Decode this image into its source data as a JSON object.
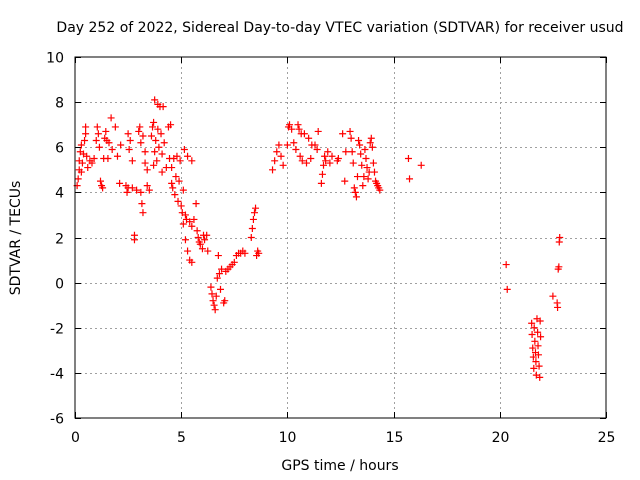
{
  "chart_data": {
    "type": "scatter",
    "title": "Day 252 of 2022, Sidereal Day-to-day VTEC variation (SDTVAR) for receiver usud",
    "xlabel": "GPS time / hours",
    "ylabel": "SDTVAR / TECUs",
    "xlim": [
      0,
      25
    ],
    "ylim": [
      -6,
      10
    ],
    "xticks": [
      0,
      5,
      10,
      15,
      20,
      25
    ],
    "yticks": [
      -6,
      -4,
      -2,
      0,
      2,
      4,
      6,
      8,
      10
    ],
    "xtick_labels": [
      "0",
      "5",
      "10",
      "15",
      "20",
      "25"
    ],
    "ytick_labels": [
      "-6",
      "-4",
      "-2",
      "0",
      "2",
      "4",
      "6",
      "8",
      "10"
    ],
    "grid": true,
    "marker": "plus",
    "marker_color": "#ff0000",
    "series": [
      {
        "name": "SDTVAR",
        "points": [
          [
            0.1,
            4.3
          ],
          [
            0.15,
            4.6
          ],
          [
            0.2,
            5.0
          ],
          [
            0.2,
            5.4
          ],
          [
            0.25,
            5.8
          ],
          [
            0.3,
            6.1
          ],
          [
            0.3,
            4.9
          ],
          [
            0.35,
            5.3
          ],
          [
            0.4,
            5.7
          ],
          [
            0.45,
            6.3
          ],
          [
            0.5,
            6.6
          ],
          [
            0.5,
            6.9
          ],
          [
            0.55,
            5.6
          ],
          [
            0.6,
            5.1
          ],
          [
            0.7,
            5.4
          ],
          [
            0.8,
            5.3
          ],
          [
            0.9,
            5.5
          ],
          [
            1.0,
            6.3
          ],
          [
            1.05,
            6.9
          ],
          [
            1.1,
            6.6
          ],
          [
            1.15,
            6.0
          ],
          [
            1.2,
            4.5
          ],
          [
            1.25,
            4.3
          ],
          [
            1.3,
            4.2
          ],
          [
            1.35,
            5.5
          ],
          [
            1.4,
            6.4
          ],
          [
            1.45,
            6.7
          ],
          [
            1.5,
            6.3
          ],
          [
            1.55,
            5.5
          ],
          [
            1.6,
            6.2
          ],
          [
            1.7,
            7.3
          ],
          [
            1.75,
            5.9
          ],
          [
            1.9,
            6.9
          ],
          [
            2.0,
            5.6
          ],
          [
            2.1,
            4.4
          ],
          [
            2.15,
            6.1
          ],
          [
            2.4,
            4.3
          ],
          [
            2.45,
            4.0
          ],
          [
            2.5,
            4.2
          ],
          [
            2.5,
            6.6
          ],
          [
            2.55,
            5.9
          ],
          [
            2.6,
            6.3
          ],
          [
            2.7,
            4.2
          ],
          [
            2.7,
            5.4
          ],
          [
            2.8,
            2.1
          ],
          [
            2.8,
            1.9
          ],
          [
            2.9,
            4.1
          ],
          [
            3.0,
            6.7
          ],
          [
            3.05,
            6.9
          ],
          [
            3.1,
            6.2
          ],
          [
            3.1,
            4.0
          ],
          [
            3.15,
            3.5
          ],
          [
            3.2,
            3.1
          ],
          [
            3.2,
            6.5
          ],
          [
            3.3,
            5.8
          ],
          [
            3.3,
            5.3
          ],
          [
            3.4,
            5.0
          ],
          [
            3.4,
            4.3
          ],
          [
            3.5,
            4.1
          ],
          [
            3.6,
            6.5
          ],
          [
            3.65,
            6.9
          ],
          [
            3.7,
            7.1
          ],
          [
            3.7,
            5.2
          ],
          [
            3.75,
            5.8
          ],
          [
            3.75,
            8.1
          ],
          [
            3.8,
            6.3
          ],
          [
            3.85,
            5.4
          ],
          [
            3.9,
            6.8
          ],
          [
            3.9,
            7.9
          ],
          [
            3.95,
            6.0
          ],
          [
            4.0,
            7.8
          ],
          [
            4.05,
            6.6
          ],
          [
            4.1,
            5.7
          ],
          [
            4.1,
            4.9
          ],
          [
            4.15,
            7.8
          ],
          [
            4.2,
            6.2
          ],
          [
            4.3,
            5.1
          ],
          [
            4.4,
            6.9
          ],
          [
            4.45,
            5.5
          ],
          [
            4.5,
            7.0
          ],
          [
            4.55,
            5.1
          ],
          [
            4.55,
            4.4
          ],
          [
            4.6,
            4.2
          ],
          [
            4.65,
            5.5
          ],
          [
            4.7,
            3.9
          ],
          [
            4.75,
            4.7
          ],
          [
            4.8,
            5.6
          ],
          [
            4.85,
            3.6
          ],
          [
            4.9,
            4.5
          ],
          [
            4.95,
            5.4
          ],
          [
            5.0,
            3.4
          ],
          [
            5.05,
            3.1
          ],
          [
            5.1,
            4.1
          ],
          [
            5.15,
            5.9
          ],
          [
            5.2,
            3.0
          ],
          [
            5.25,
            2.8
          ],
          [
            5.3,
            5.6
          ],
          [
            5.4,
            2.7
          ],
          [
            5.5,
            2.5
          ],
          [
            5.5,
            5.4
          ],
          [
            5.1,
            2.6
          ],
          [
            5.2,
            1.9
          ],
          [
            5.3,
            1.4
          ],
          [
            5.4,
            1.0
          ],
          [
            5.5,
            0.9
          ],
          [
            5.6,
            2.8
          ],
          [
            5.7,
            3.5
          ],
          [
            5.75,
            2.3
          ],
          [
            5.8,
            2.0
          ],
          [
            5.85,
            1.8
          ],
          [
            5.9,
            1.7
          ],
          [
            6.0,
            1.5
          ],
          [
            6.05,
            2.1
          ],
          [
            6.1,
            1.9
          ],
          [
            6.2,
            2.1
          ],
          [
            6.25,
            1.4
          ],
          [
            6.4,
            -0.2
          ],
          [
            6.45,
            -0.5
          ],
          [
            6.5,
            -0.8
          ],
          [
            6.55,
            -1.0
          ],
          [
            6.6,
            -1.2
          ],
          [
            6.65,
            -0.6
          ],
          [
            6.7,
            0.2
          ],
          [
            6.75,
            1.2
          ],
          [
            6.8,
            0.4
          ],
          [
            6.85,
            -0.3
          ],
          [
            6.9,
            0.6
          ],
          [
            7.0,
            -0.9
          ],
          [
            7.05,
            -0.8
          ],
          [
            7.1,
            0.5
          ],
          [
            7.2,
            0.6
          ],
          [
            7.3,
            0.7
          ],
          [
            7.4,
            0.8
          ],
          [
            7.5,
            0.9
          ],
          [
            7.6,
            1.2
          ],
          [
            7.7,
            1.3
          ],
          [
            7.8,
            1.3
          ],
          [
            7.9,
            1.4
          ],
          [
            8.0,
            1.3
          ],
          [
            8.3,
            2.0
          ],
          [
            8.35,
            2.4
          ],
          [
            8.4,
            2.8
          ],
          [
            8.45,
            3.1
          ],
          [
            8.5,
            3.3
          ],
          [
            8.55,
            1.2
          ],
          [
            8.6,
            1.4
          ],
          [
            8.65,
            1.3
          ],
          [
            9.3,
            5.0
          ],
          [
            9.4,
            5.4
          ],
          [
            9.5,
            5.8
          ],
          [
            9.6,
            6.1
          ],
          [
            9.7,
            5.6
          ],
          [
            9.8,
            5.2
          ],
          [
            10.0,
            6.1
          ],
          [
            10.05,
            6.9
          ],
          [
            10.1,
            7.0
          ],
          [
            10.2,
            6.8
          ],
          [
            10.3,
            6.2
          ],
          [
            10.4,
            5.9
          ],
          [
            10.5,
            7.0
          ],
          [
            10.55,
            6.8
          ],
          [
            10.6,
            5.6
          ],
          [
            10.65,
            6.6
          ],
          [
            10.7,
            5.4
          ],
          [
            10.8,
            6.6
          ],
          [
            10.9,
            5.3
          ],
          [
            11.0,
            6.4
          ],
          [
            11.1,
            5.5
          ],
          [
            11.15,
            6.1
          ],
          [
            11.3,
            6.1
          ],
          [
            11.4,
            5.9
          ],
          [
            11.45,
            6.7
          ],
          [
            11.6,
            4.4
          ],
          [
            11.65,
            4.8
          ],
          [
            11.7,
            5.2
          ],
          [
            11.75,
            5.6
          ],
          [
            11.8,
            5.4
          ],
          [
            11.9,
            5.8
          ],
          [
            12.0,
            5.3
          ],
          [
            12.1,
            5.6
          ],
          [
            12.35,
            5.4
          ],
          [
            12.4,
            5.5
          ],
          [
            12.6,
            6.6
          ],
          [
            12.7,
            4.5
          ],
          [
            12.75,
            5.8
          ],
          [
            12.95,
            6.7
          ],
          [
            13.0,
            6.4
          ],
          [
            13.05,
            5.8
          ],
          [
            13.1,
            5.3
          ],
          [
            13.15,
            4.2
          ],
          [
            13.2,
            4.0
          ],
          [
            13.25,
            3.8
          ],
          [
            13.3,
            4.7
          ],
          [
            13.35,
            6.3
          ],
          [
            13.4,
            6.1
          ],
          [
            13.45,
            5.7
          ],
          [
            13.5,
            5.2
          ],
          [
            13.55,
            4.3
          ],
          [
            13.6,
            4.7
          ],
          [
            13.65,
            5.9
          ],
          [
            13.7,
            5.5
          ],
          [
            13.75,
            5.1
          ],
          [
            13.8,
            4.6
          ],
          [
            13.85,
            4.9
          ],
          [
            13.9,
            6.2
          ],
          [
            13.95,
            6.4
          ],
          [
            14.0,
            6.0
          ],
          [
            14.05,
            5.3
          ],
          [
            14.1,
            4.9
          ],
          [
            14.15,
            4.5
          ],
          [
            14.2,
            4.4
          ],
          [
            14.25,
            4.3
          ],
          [
            14.3,
            4.2
          ],
          [
            14.35,
            4.1
          ],
          [
            15.7,
            5.5
          ],
          [
            15.75,
            4.6
          ],
          [
            16.3,
            5.2
          ],
          [
            20.3,
            0.8
          ],
          [
            20.35,
            -0.3
          ],
          [
            21.5,
            -1.8
          ],
          [
            21.52,
            -2.3
          ],
          [
            21.55,
            -2.9
          ],
          [
            21.58,
            -3.3
          ],
          [
            21.6,
            -3.8
          ],
          [
            21.62,
            -2.0
          ],
          [
            21.65,
            -2.6
          ],
          [
            21.68,
            -3.1
          ],
          [
            21.7,
            -3.5
          ],
          [
            21.72,
            -4.1
          ],
          [
            21.75,
            -1.6
          ],
          [
            21.78,
            -2.2
          ],
          [
            21.8,
            -2.8
          ],
          [
            21.82,
            -3.2
          ],
          [
            21.85,
            -3.7
          ],
          [
            21.88,
            -4.2
          ],
          [
            21.9,
            -1.7
          ],
          [
            21.92,
            -2.4
          ],
          [
            22.5,
            -0.6
          ],
          [
            22.7,
            -0.9
          ],
          [
            22.72,
            -1.1
          ],
          [
            22.75,
            0.6
          ],
          [
            22.78,
            0.7
          ],
          [
            22.8,
            1.8
          ],
          [
            22.82,
            2.0
          ]
        ]
      }
    ]
  }
}
